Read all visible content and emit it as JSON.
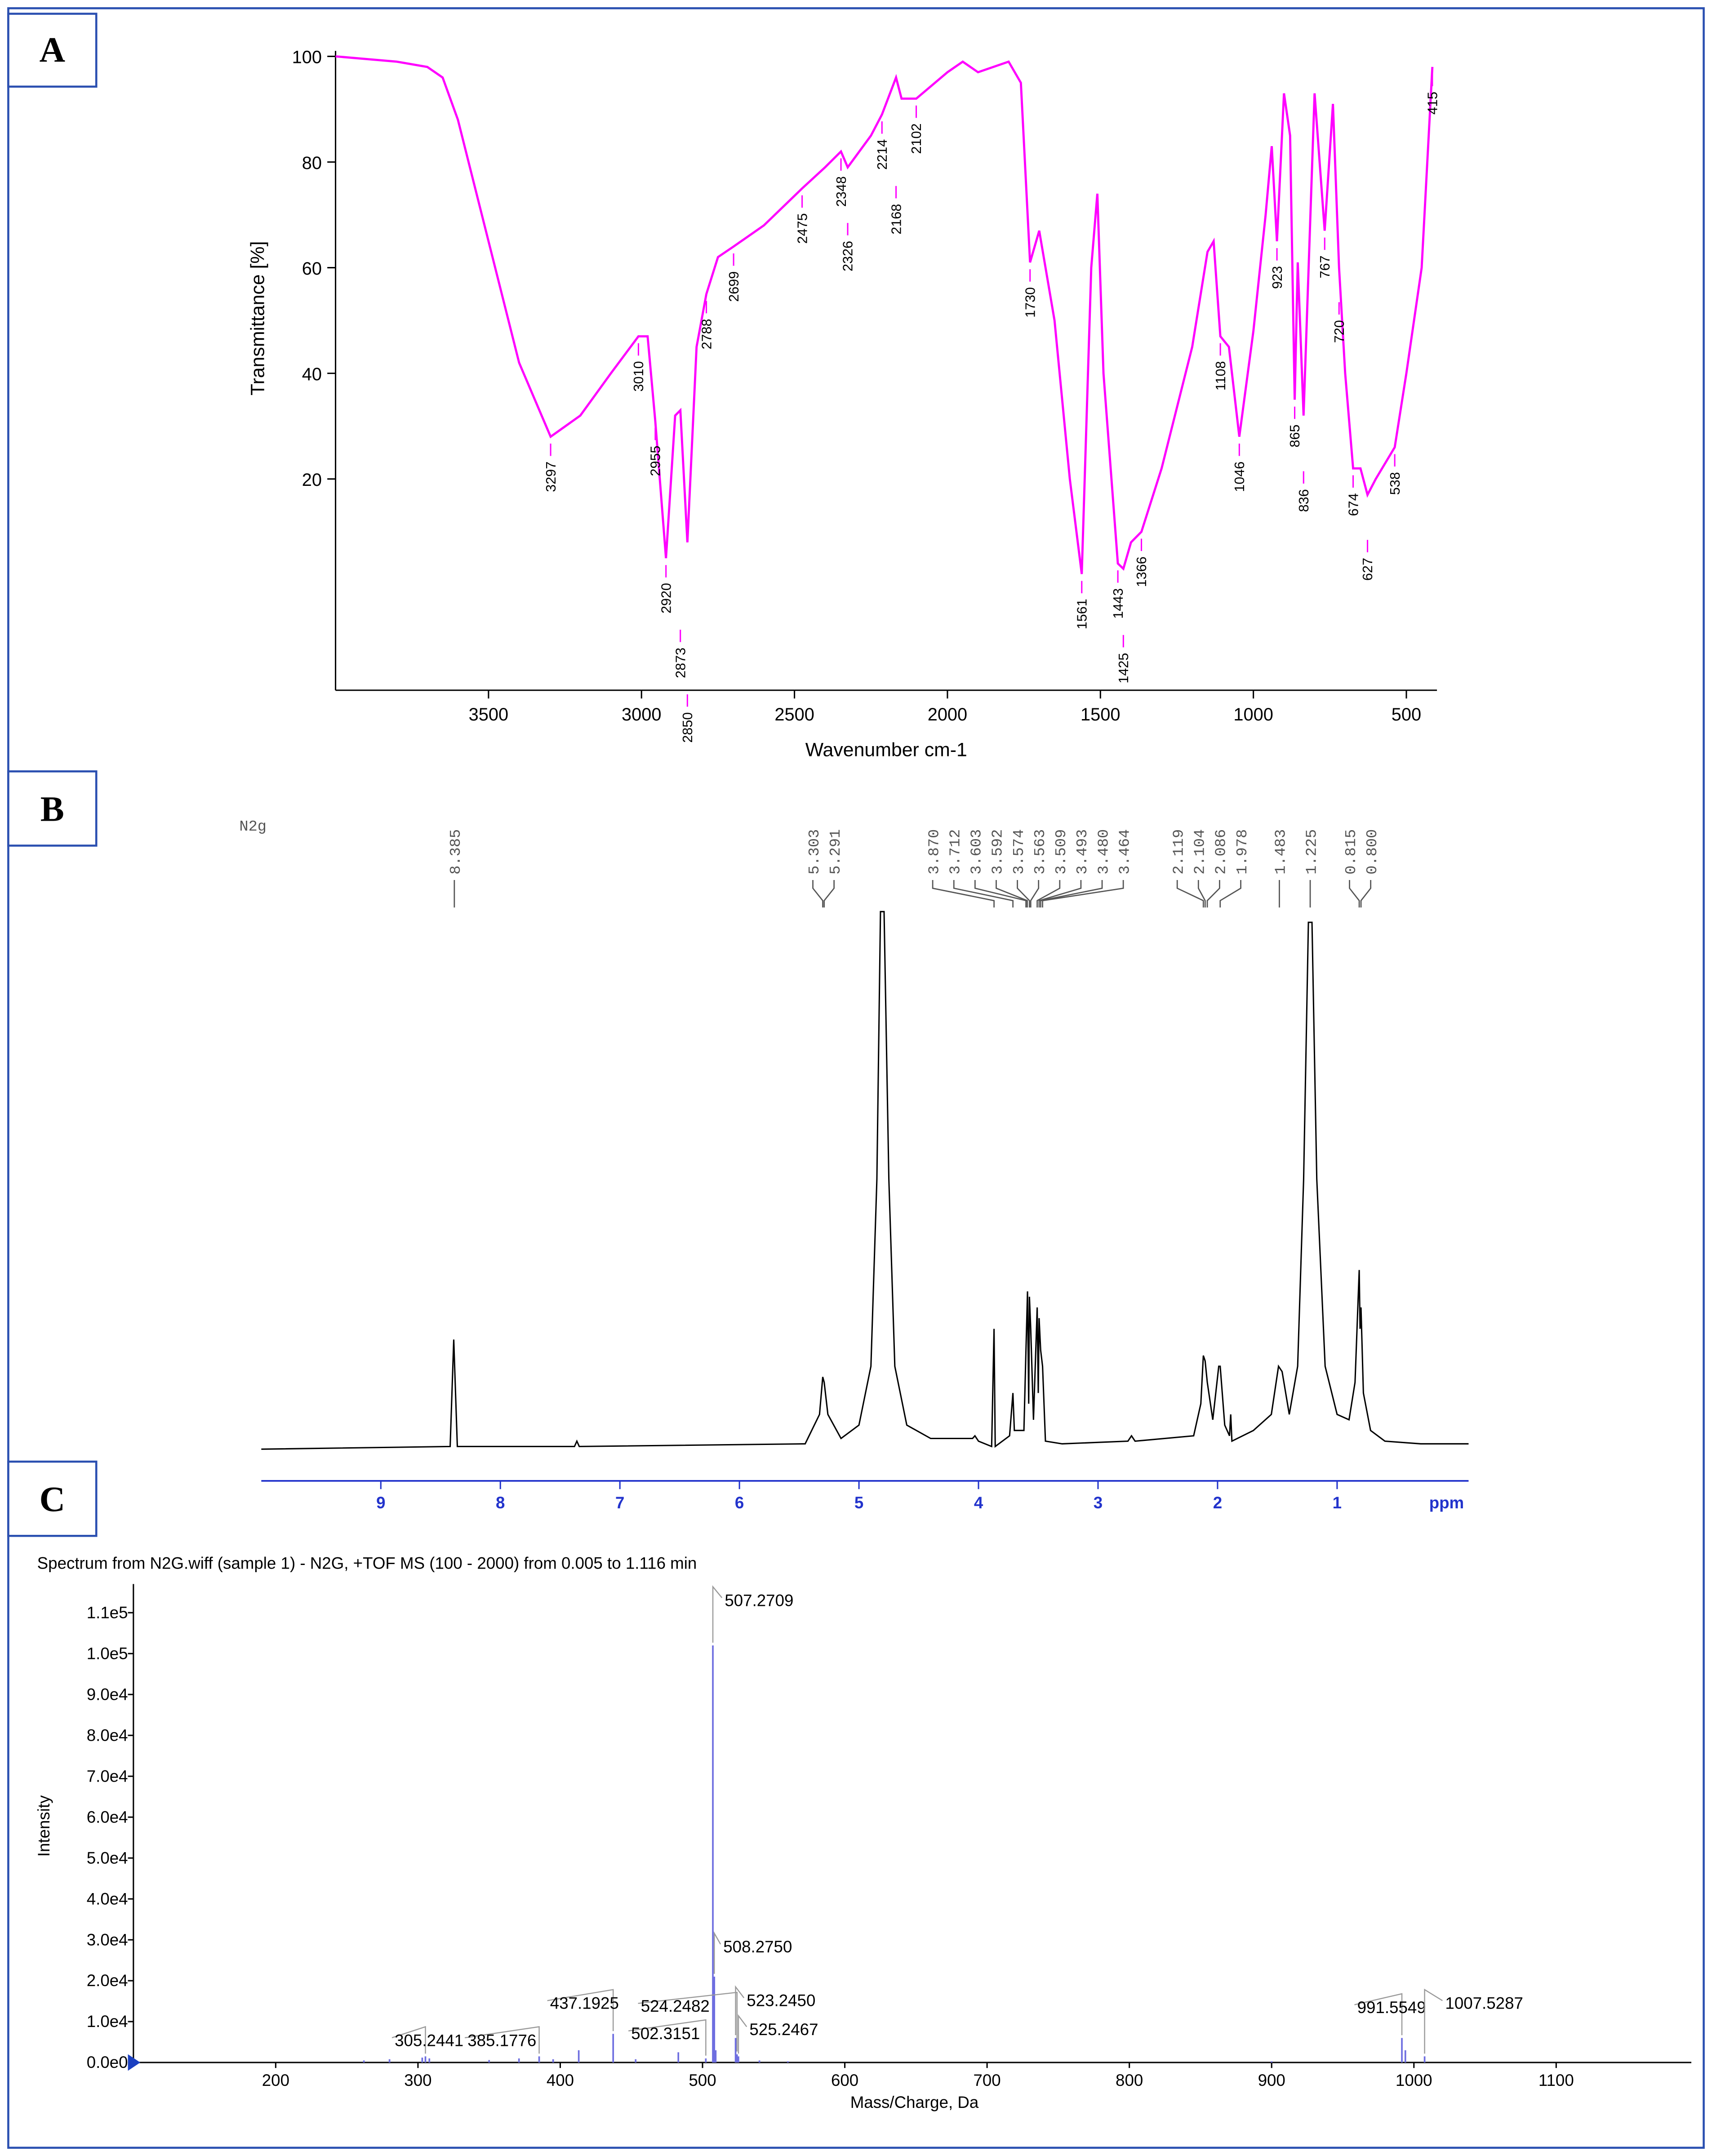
{
  "chart_data": [
    {
      "panel": "A",
      "type": "line",
      "x_label": "Wavenumber cm-1",
      "y_label": "Transmittance [%]",
      "color": "#ff00ff",
      "x": [
        4000,
        3800,
        3700,
        3650,
        3600,
        3500,
        3400,
        3297,
        3200,
        3100,
        3010,
        2980,
        2955,
        2920,
        2890,
        2873,
        2850,
        2820,
        2788,
        2750,
        2699,
        2600,
        2475,
        2400,
        2348,
        2326,
        2250,
        2214,
        2168,
        2150,
        2102,
        2000,
        1950,
        1900,
        1800,
        1760,
        1730,
        1700,
        1650,
        1600,
        1561,
        1530,
        1510,
        1490,
        1443,
        1425,
        1400,
        1366,
        1300,
        1200,
        1150,
        1130,
        1108,
        1080,
        1046,
        1000,
        960,
        940,
        923,
        900,
        880,
        865,
        855,
        836,
        800,
        767,
        740,
        720,
        700,
        674,
        650,
        627,
        600,
        538,
        500,
        450,
        415
      ],
      "values": [
        100,
        99,
        98,
        96,
        88,
        65,
        42,
        28,
        32,
        40,
        47,
        47,
        31,
        5,
        32,
        33,
        8,
        45,
        55,
        62,
        64,
        68,
        75,
        79,
        82,
        79,
        85,
        89,
        96,
        92,
        92,
        97,
        99,
        97,
        99,
        95,
        61,
        67,
        50,
        20,
        2,
        60,
        74,
        40,
        4,
        3,
        8,
        10,
        22,
        45,
        63,
        65,
        47,
        45,
        28,
        48,
        70,
        83,
        65,
        93,
        85,
        35,
        61,
        32,
        93,
        67,
        91,
        60,
        40,
        22,
        22,
        17,
        20,
        26,
        40,
        60,
        98
      ],
      "xlim": [
        4000,
        400
      ],
      "ylim": [
        -20,
        100
      ],
      "xticks": [
        3500,
        3000,
        2500,
        2000,
        1500,
        1000,
        500
      ],
      "yticks": [
        20,
        40,
        60,
        80,
        100
      ],
      "peaks": [
        3297,
        3010,
        2955,
        2920,
        2873,
        2850,
        2788,
        2699,
        2475,
        2348,
        2326,
        2214,
        2168,
        2102,
        1730,
        1561,
        1443,
        1425,
        1366,
        1108,
        1046,
        923,
        865,
        836,
        767,
        720,
        674,
        627,
        538,
        415
      ]
    },
    {
      "panel": "B",
      "type": "line",
      "sample_label": "N2g",
      "x_label": "ppm",
      "color": "#000000",
      "x": [
        10,
        8.42,
        8.39,
        8.36,
        7.38,
        7.36,
        7.34,
        5.45,
        5.33,
        5.303,
        5.291,
        5.26,
        5.15,
        5.0,
        4.9,
        4.85,
        4.82,
        4.79,
        4.75,
        4.7,
        4.6,
        4.4,
        4.05,
        4.03,
        4.0,
        3.89,
        3.87,
        3.86,
        3.74,
        3.712,
        3.7,
        3.62,
        3.603,
        3.59,
        3.58,
        3.574,
        3.563,
        3.54,
        3.509,
        3.5,
        3.493,
        3.48,
        3.464,
        3.44,
        3.3,
        2.75,
        2.72,
        2.69,
        2.2,
        2.14,
        2.119,
        2.104,
        2.086,
        2.04,
        1.99,
        1.978,
        1.94,
        1.9,
        1.89,
        1.88,
        1.7,
        1.55,
        1.49,
        1.46,
        1.4,
        1.33,
        1.28,
        1.24,
        1.21,
        1.17,
        1.1,
        1.0,
        0.9,
        0.85,
        0.815,
        0.808,
        0.8,
        0.78,
        0.72,
        0.6,
        0.3,
        -0.1
      ],
      "values": [
        -0.5,
        0,
        20,
        0,
        0,
        1,
        0,
        0.5,
        6,
        13,
        12,
        6,
        1.5,
        4,
        15,
        50,
        100,
        100,
        50,
        15,
        4,
        1.5,
        1.5,
        2,
        1,
        0,
        22,
        0,
        2,
        10,
        3,
        3,
        18,
        29,
        8,
        28,
        22,
        5,
        26,
        10,
        24,
        18,
        15,
        1,
        0.5,
        1,
        2,
        1,
        2,
        8,
        17,
        16,
        12,
        5,
        15,
        15,
        4,
        2,
        6,
        1,
        3,
        6,
        15,
        14,
        6,
        15,
        50,
        98,
        98,
        50,
        15,
        6,
        5,
        12,
        33,
        22,
        26,
        10,
        3,
        1,
        0.5,
        0.5
      ],
      "xlim": [
        10,
        -0.1
      ],
      "ylim": [
        0,
        100
      ],
      "xticks": [
        9,
        8,
        7,
        6,
        5,
        4,
        3,
        2,
        1
      ],
      "shifts": [
        8.385,
        5.303,
        5.291,
        {
          "value": 3.87,
          "label": "3.870"
        },
        3.712,
        3.603,
        3.592,
        3.574,
        3.563,
        3.509,
        3.493,
        {
          "value": 3.48,
          "label": "3.480"
        },
        3.464,
        2.119,
        2.104,
        2.086,
        1.978,
        1.483,
        1.225,
        0.815,
        {
          "value": 0.8,
          "label": "0.800"
        }
      ]
    },
    {
      "panel": "C",
      "type": "stick",
      "title": "Spectrum from N2G.wiff (sample 1) - N2G, +TOF MS (100 - 2000) from 0.005 to 1.116 min",
      "x_label": "Mass/Charge, Da",
      "y_label": "Intensity",
      "color": "#6e6ee0",
      "x": [
        262,
        280,
        303,
        305.2441,
        308,
        350,
        371,
        385.1776,
        395,
        413,
        437.1925,
        453,
        483,
        502.3151,
        507.2709,
        508.275,
        509.27,
        523.245,
        524.2482,
        525.2467,
        540,
        560,
        900,
        991.5549,
        994,
        1007.5287
      ],
      "values": [
        500,
        800,
        1200,
        1500,
        1000,
        600,
        1000,
        1500,
        800,
        3000,
        7000,
        800,
        2500,
        1000,
        102000,
        21000,
        3000,
        6000,
        2000,
        1500,
        500,
        300,
        300,
        6000,
        3000,
        1500
      ],
      "xlim": [
        100,
        1195
      ],
      "ylim": [
        0,
        115000
      ],
      "xticks": [
        200,
        300,
        400,
        500,
        600,
        700,
        800,
        900,
        1000,
        1100
      ],
      "yticks": [
        {
          "value": 0,
          "label": "0.0e0"
        },
        {
          "value": 10000,
          "label": "1.0e4"
        },
        {
          "value": 20000,
          "label": "2.0e4"
        },
        {
          "value": 30000,
          "label": "3.0e4"
        },
        {
          "value": 40000,
          "label": "4.0e4"
        },
        {
          "value": 50000,
          "label": "5.0e4"
        },
        {
          "value": 60000,
          "label": "6.0e4"
        },
        {
          "value": 70000,
          "label": "7.0e4"
        },
        {
          "value": 80000,
          "label": "8.0e4"
        },
        {
          "value": 90000,
          "label": "9.0e4"
        },
        {
          "value": 100000,
          "label": "1.0e5"
        },
        {
          "value": 110000,
          "label": "1.1e5"
        }
      ],
      "peak_labels": [
        305.2441,
        385.1776,
        437.1925,
        502.3151,
        507.2709,
        {
          "value": 508.275,
          "label": "508.2750"
        },
        {
          "value": 523.245,
          "label": "523.2450"
        },
        524.2482,
        525.2467,
        991.5549,
        1007.5287
      ]
    }
  ]
}
